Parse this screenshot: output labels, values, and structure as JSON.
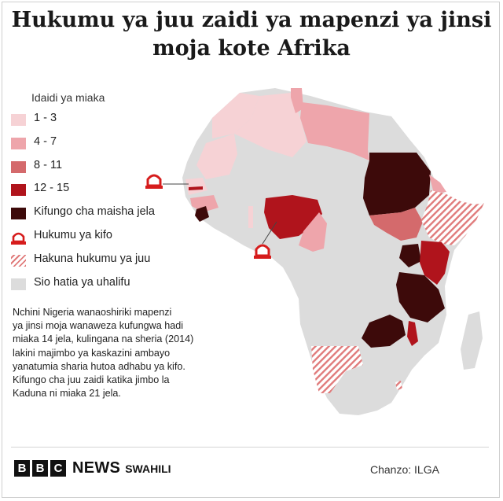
{
  "title_line1": "Hukumu ya juu zaidi ya mapenzi ya jinsi",
  "title_line2": "moja kote Afrika",
  "legend": {
    "heading": "Idaidi ya miaka",
    "items": [
      {
        "label": "1 - 3",
        "color": "#f6d2d5",
        "pattern": "solid"
      },
      {
        "label": "4 - 7",
        "color": "#eea5ab",
        "pattern": "solid"
      },
      {
        "label": "8 - 11",
        "color": "#d46a6c",
        "pattern": "solid"
      },
      {
        "label": "12 - 15",
        "color": "#b0141c",
        "pattern": "solid"
      },
      {
        "label": "Kifungo cha maisha jela",
        "color": "#3d0a0a",
        "pattern": "solid"
      },
      {
        "label": "Hukumu ya kifo",
        "color": "#d61c1c",
        "pattern": "icon"
      },
      {
        "label": "Hakuna hukumu ya juu",
        "color": "#e07b7b",
        "pattern": "hatch"
      },
      {
        "label": "Sio hatia ya uhalifu",
        "color": "#dcdcdc",
        "pattern": "solid"
      }
    ]
  },
  "note_lines": [
    "Nchini  Nigeria wanaoshiriki mapenzi",
    "ya jinsi moja wanaweza kufungwa hadi",
    "miaka 14 jela, kulingana na sheria (2014)",
    "lakini majimbo ya kaskazini ambayo",
    "yanatumia sharia hutoa adhabu ya kifo.",
    "Kifungo cha juu zaidi katika jimbo la",
    "Kaduna ni miaka 21 jela."
  ],
  "footer": {
    "logo_letters": [
      "B",
      "B",
      "C"
    ],
    "news": "NEWS",
    "service": "SWAHILI",
    "source": "Chanzo: ILGA"
  },
  "colors": {
    "none": "#dcdcdc",
    "y1_3": "#f6d2d5",
    "y4_7": "#eea5ab",
    "y8_11": "#d46a6c",
    "y12_15": "#b0141c",
    "life": "#3d0a0a",
    "death": "#d61c1c",
    "border": "#ffffff"
  }
}
